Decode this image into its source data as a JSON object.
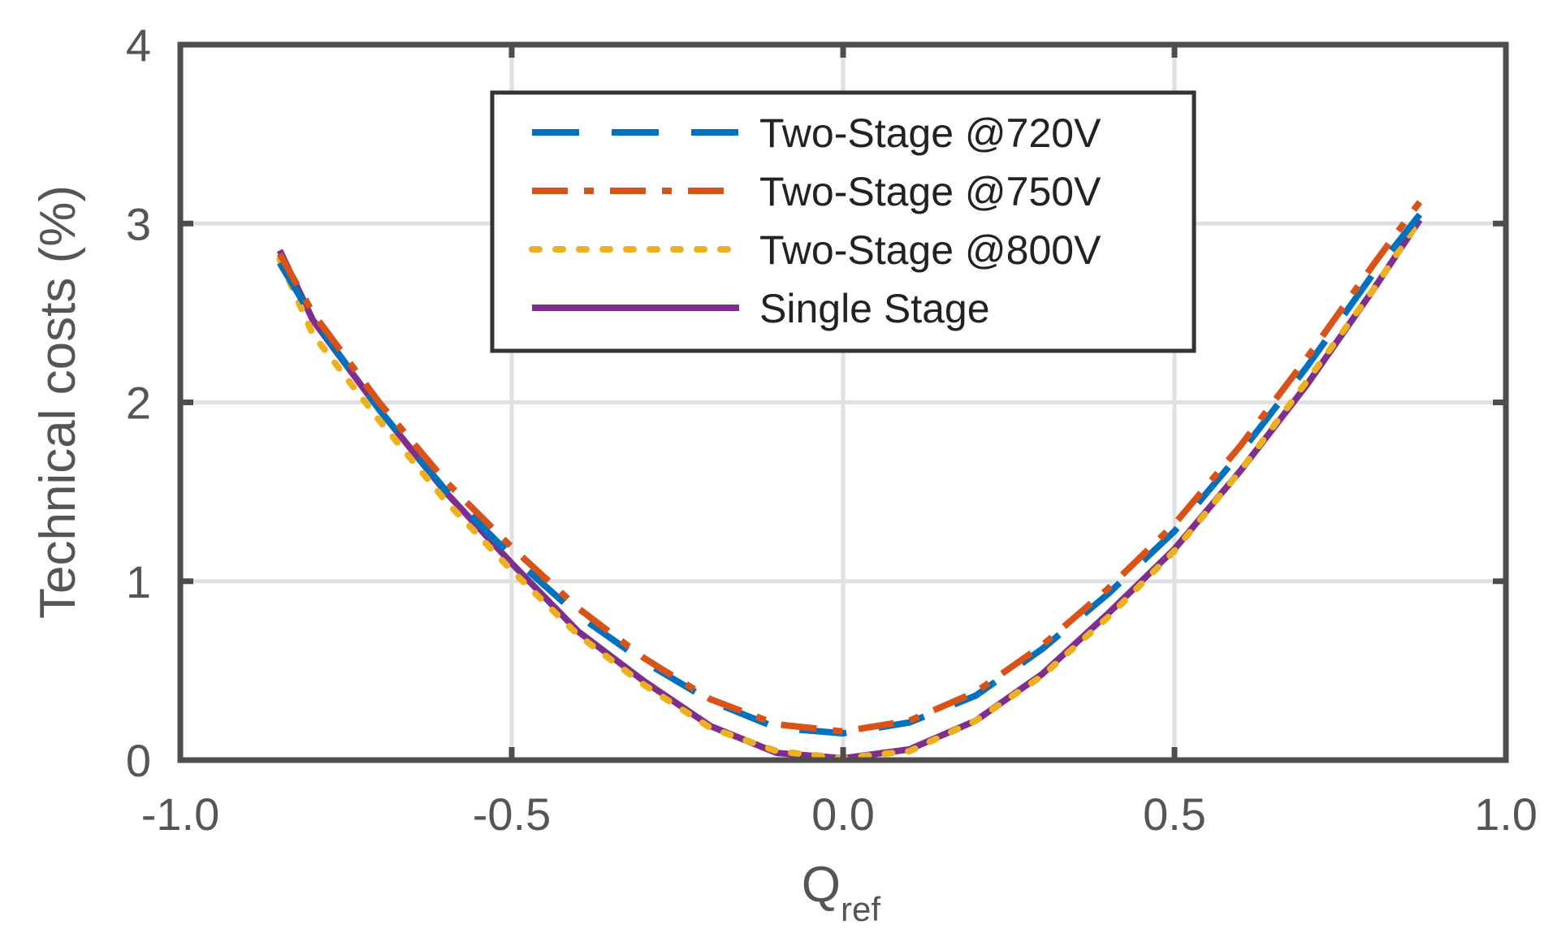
{
  "chart_data": {
    "type": "line",
    "xlabel": "Q",
    "xlabel_sub": "ref",
    "ylabel": "Technical costs (%)",
    "xlim": [
      -1.0,
      1.0
    ],
    "ylim": [
      0,
      4
    ],
    "x_ticks": [
      -1.0,
      -0.5,
      0.0,
      0.5,
      1.0
    ],
    "x_tick_labels": [
      "-1.0",
      "-0.5",
      "0.0",
      "0.5",
      "1.0"
    ],
    "y_ticks": [
      0,
      1,
      2,
      3,
      4
    ],
    "y_tick_labels": [
      "0",
      "1",
      "2",
      "3",
      "4"
    ],
    "grid": true,
    "legend_position": "top-center",
    "series": [
      {
        "name": "Two-Stage @720V",
        "color": "#0072BD",
        "style": "dashed",
        "x": [
          -0.85,
          -0.8,
          -0.7,
          -0.6,
          -0.5,
          -0.4,
          -0.3,
          -0.2,
          -0.1,
          0.0,
          0.1,
          0.2,
          0.3,
          0.4,
          0.5,
          0.6,
          0.7,
          0.8,
          0.87
        ],
        "y": [
          2.78,
          2.47,
          1.96,
          1.51,
          1.14,
          0.81,
          0.55,
          0.33,
          0.18,
          0.15,
          0.21,
          0.36,
          0.62,
          0.93,
          1.28,
          1.72,
          2.2,
          2.72,
          3.05
        ]
      },
      {
        "name": "Two-Stage @750V",
        "color": "#D95319",
        "style": "dashdot",
        "x": [
          -0.85,
          -0.8,
          -0.7,
          -0.6,
          -0.5,
          -0.4,
          -0.3,
          -0.2,
          -0.1,
          0.0,
          0.1,
          0.2,
          0.3,
          0.4,
          0.5,
          0.6,
          0.7,
          0.8,
          0.87
        ],
        "y": [
          2.83,
          2.5,
          2.0,
          1.56,
          1.19,
          0.85,
          0.57,
          0.34,
          0.2,
          0.16,
          0.22,
          0.38,
          0.64,
          0.96,
          1.32,
          1.76,
          2.25,
          2.77,
          3.12
        ]
      },
      {
        "name": "Two-Stage @800V",
        "color": "#EDB120",
        "style": "dotted",
        "x": [
          -0.85,
          -0.8,
          -0.7,
          -0.6,
          -0.5,
          -0.4,
          -0.3,
          -0.2,
          -0.1,
          0.0,
          0.1,
          0.2,
          0.3,
          0.4,
          0.5,
          0.6,
          0.7,
          0.8,
          0.87
        ],
        "y": [
          2.8,
          2.38,
          1.9,
          1.45,
          1.06,
          0.7,
          0.42,
          0.18,
          0.05,
          0.01,
          0.05,
          0.22,
          0.47,
          0.8,
          1.17,
          1.62,
          2.12,
          2.63,
          3.02
        ]
      },
      {
        "name": "Single Stage",
        "color": "#7E2F8E",
        "style": "solid",
        "x": [
          -0.85,
          -0.8,
          -0.7,
          -0.6,
          -0.5,
          -0.4,
          -0.3,
          -0.2,
          -0.1,
          0.0,
          0.1,
          0.2,
          0.3,
          0.4,
          0.5,
          0.6,
          0.7,
          0.8,
          0.87
        ],
        "y": [
          2.85,
          2.46,
          1.96,
          1.5,
          1.1,
          0.72,
          0.44,
          0.19,
          0.04,
          0.01,
          0.06,
          0.22,
          0.48,
          0.82,
          1.18,
          1.62,
          2.1,
          2.63,
          3.02
        ]
      }
    ]
  }
}
